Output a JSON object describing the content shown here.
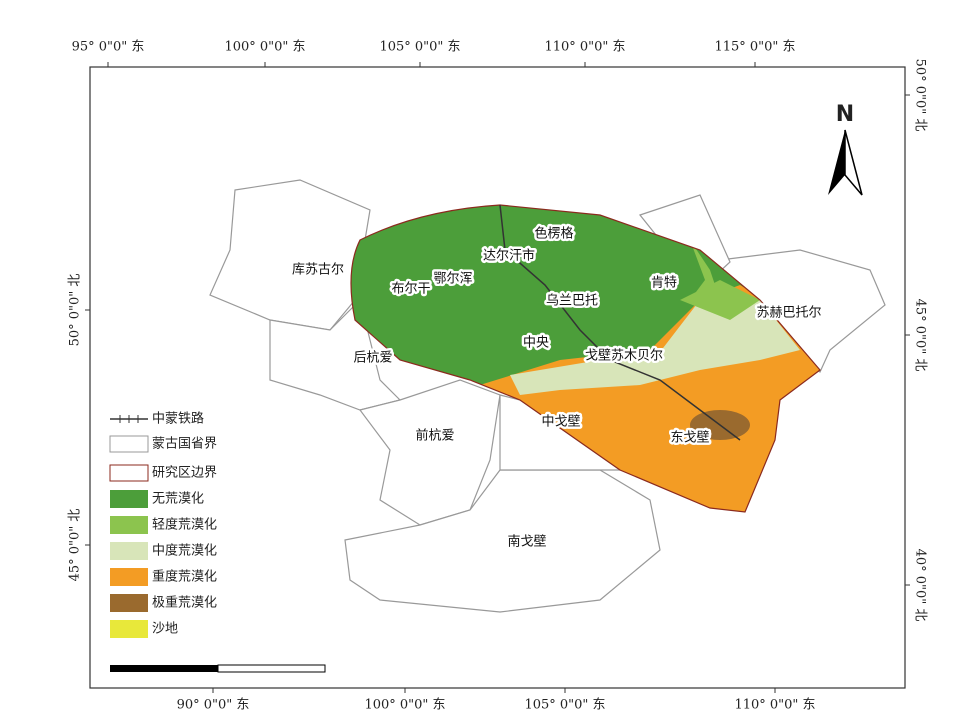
{
  "coordinates": {
    "top": [
      "95° 0\"0\" 东",
      "100° 0\"0\" 东",
      "105° 0\"0\" 东",
      "110° 0\"0\" 东",
      "115° 0\"0\" 东"
    ],
    "bottom": [
      "90° 0\"0\" 东",
      "100° 0\"0\" 东",
      "105° 0\"0\" 东",
      "110° 0\"0\" 东"
    ],
    "left": [
      "50° 0\"0\" 北",
      "45° 0\"0\" 北"
    ],
    "right": [
      "50° 0\"0\" 北",
      "45° 0\"0\" 北",
      "40° 0\"0\" 北"
    ]
  },
  "places": [
    "库苏古尔",
    "布尔干",
    "鄂尔浑",
    "达尔汗市",
    "色楞格",
    "肯特",
    "乌兰巴托",
    "中央",
    "戈壁苏木贝尔",
    "苏赫巴托尔",
    "后杭爱",
    "前杭爱",
    "中戈壁",
    "东戈壁",
    "南戈壁"
  ],
  "north_arrow": "N",
  "legend": [
    "中蒙铁路",
    "蒙古国省界",
    "研究区边界",
    "无荒漠化",
    "轻度荒漠化",
    "中度荒漠化",
    "重度荒漠化",
    "极重荒漠化",
    "沙地"
  ]
}
